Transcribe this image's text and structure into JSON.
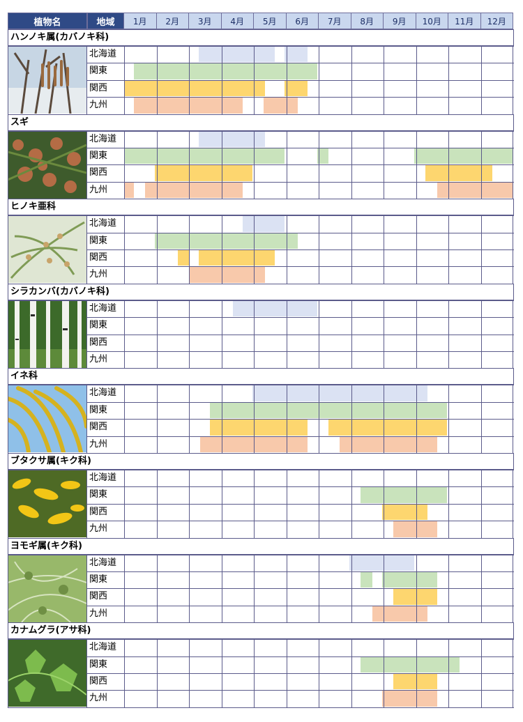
{
  "header": {
    "plant_col": "植物名",
    "region_col": "地域",
    "months": [
      "1月",
      "2月",
      "3月",
      "4月",
      "5月",
      "6月",
      "7月",
      "8月",
      "9月",
      "10月",
      "11月",
      "12月"
    ]
  },
  "colors": {
    "header_bg": "#2f4a86",
    "month_bg": "#c9d7ee",
    "北海道": "#dbe2f3",
    "関東": "#c9e3bc",
    "関西": "#fdd66f",
    "九州": "#f8c9ab",
    "grid": "#5a5a8a"
  },
  "chart_data": {
    "type": "table",
    "title": "",
    "x_unit": "month (1 = early January, 13 = end of December)",
    "regions": [
      "北海道",
      "関東",
      "関西",
      "九州"
    ],
    "plants": [
      {
        "name": "ハンノキ属(カバノキ科)",
        "photo": "alder-catkins-photo",
        "periods": {
          "北海道": [
            [
              3.3,
              5.65
            ],
            [
              5.95,
              6.65
            ]
          ],
          "関東": [
            [
              1.3,
              6.95
            ]
          ],
          "関西": [
            [
              1.0,
              5.35
            ],
            [
              5.95,
              6.65
            ]
          ],
          "九州": [
            [
              1.3,
              4.65
            ],
            [
              5.3,
              6.35
            ]
          ]
        }
      },
      {
        "name": "スギ",
        "photo": "cedar-photo",
        "periods": {
          "北海道": [
            [
              3.3,
              5.35
            ]
          ],
          "関東": [
            [
              1.0,
              5.95
            ],
            [
              6.95,
              7.3
            ],
            [
              9.95,
              13.0
            ]
          ],
          "関西": [
            [
              1.95,
              4.95
            ],
            [
              10.3,
              12.35
            ]
          ],
          "九州": [
            [
              1.0,
              1.3
            ],
            [
              1.65,
              4.65
            ],
            [
              10.65,
              13.0
            ]
          ]
        }
      },
      {
        "name": "ヒノキ亜科",
        "photo": "cypress-photo",
        "periods": {
          "北海道": [
            [
              4.65,
              5.95
            ]
          ],
          "関東": [
            [
              1.95,
              6.35
            ]
          ],
          "関西": [
            [
              2.65,
              3.0
            ],
            [
              3.3,
              5.65
            ]
          ],
          "九州": [
            [
              3.0,
              5.35
            ]
          ]
        }
      },
      {
        "name": "シラカンバ(カバノキ科)",
        "photo": "birch-photo",
        "periods": {
          "北海道": [
            [
              4.35,
              6.95
            ]
          ],
          "関東": [],
          "関西": [],
          "九州": []
        }
      },
      {
        "name": "イネ科",
        "photo": "rice-photo",
        "periods": {
          "北海道": [
            [
              4.95,
              10.35
            ]
          ],
          "関東": [
            [
              3.65,
              10.95
            ]
          ],
          "関西": [
            [
              3.65,
              6.65
            ],
            [
              7.3,
              10.95
            ]
          ],
          "九州": [
            [
              3.35,
              6.65
            ],
            [
              7.65,
              10.65
            ]
          ]
        }
      },
      {
        "name": "ブタクサ属(キク科)",
        "photo": "ragweed-photo",
        "periods": {
          "北海道": [],
          "関東": [
            [
              8.3,
              10.95
            ]
          ],
          "関西": [
            [
              8.95,
              10.35
            ]
          ],
          "九州": [
            [
              9.3,
              10.65
            ]
          ]
        }
      },
      {
        "name": "ヨモギ属(キク科)",
        "photo": "mugwort-photo",
        "periods": {
          "北海道": [
            [
              7.95,
              9.95
            ]
          ],
          "関東": [
            [
              8.3,
              8.65
            ],
            [
              8.95,
              10.65
            ]
          ],
          "関西": [
            [
              9.3,
              10.65
            ]
          ],
          "九州": [
            [
              8.65,
              10.35
            ]
          ]
        }
      },
      {
        "name": "カナムグラ(アサ科)",
        "photo": "hop-photo",
        "periods": {
          "北海道": [],
          "関東": [
            [
              8.3,
              11.35
            ]
          ],
          "関西": [
            [
              9.3,
              10.65
            ]
          ],
          "九州": [
            [
              8.95,
              10.65
            ]
          ]
        }
      }
    ]
  }
}
